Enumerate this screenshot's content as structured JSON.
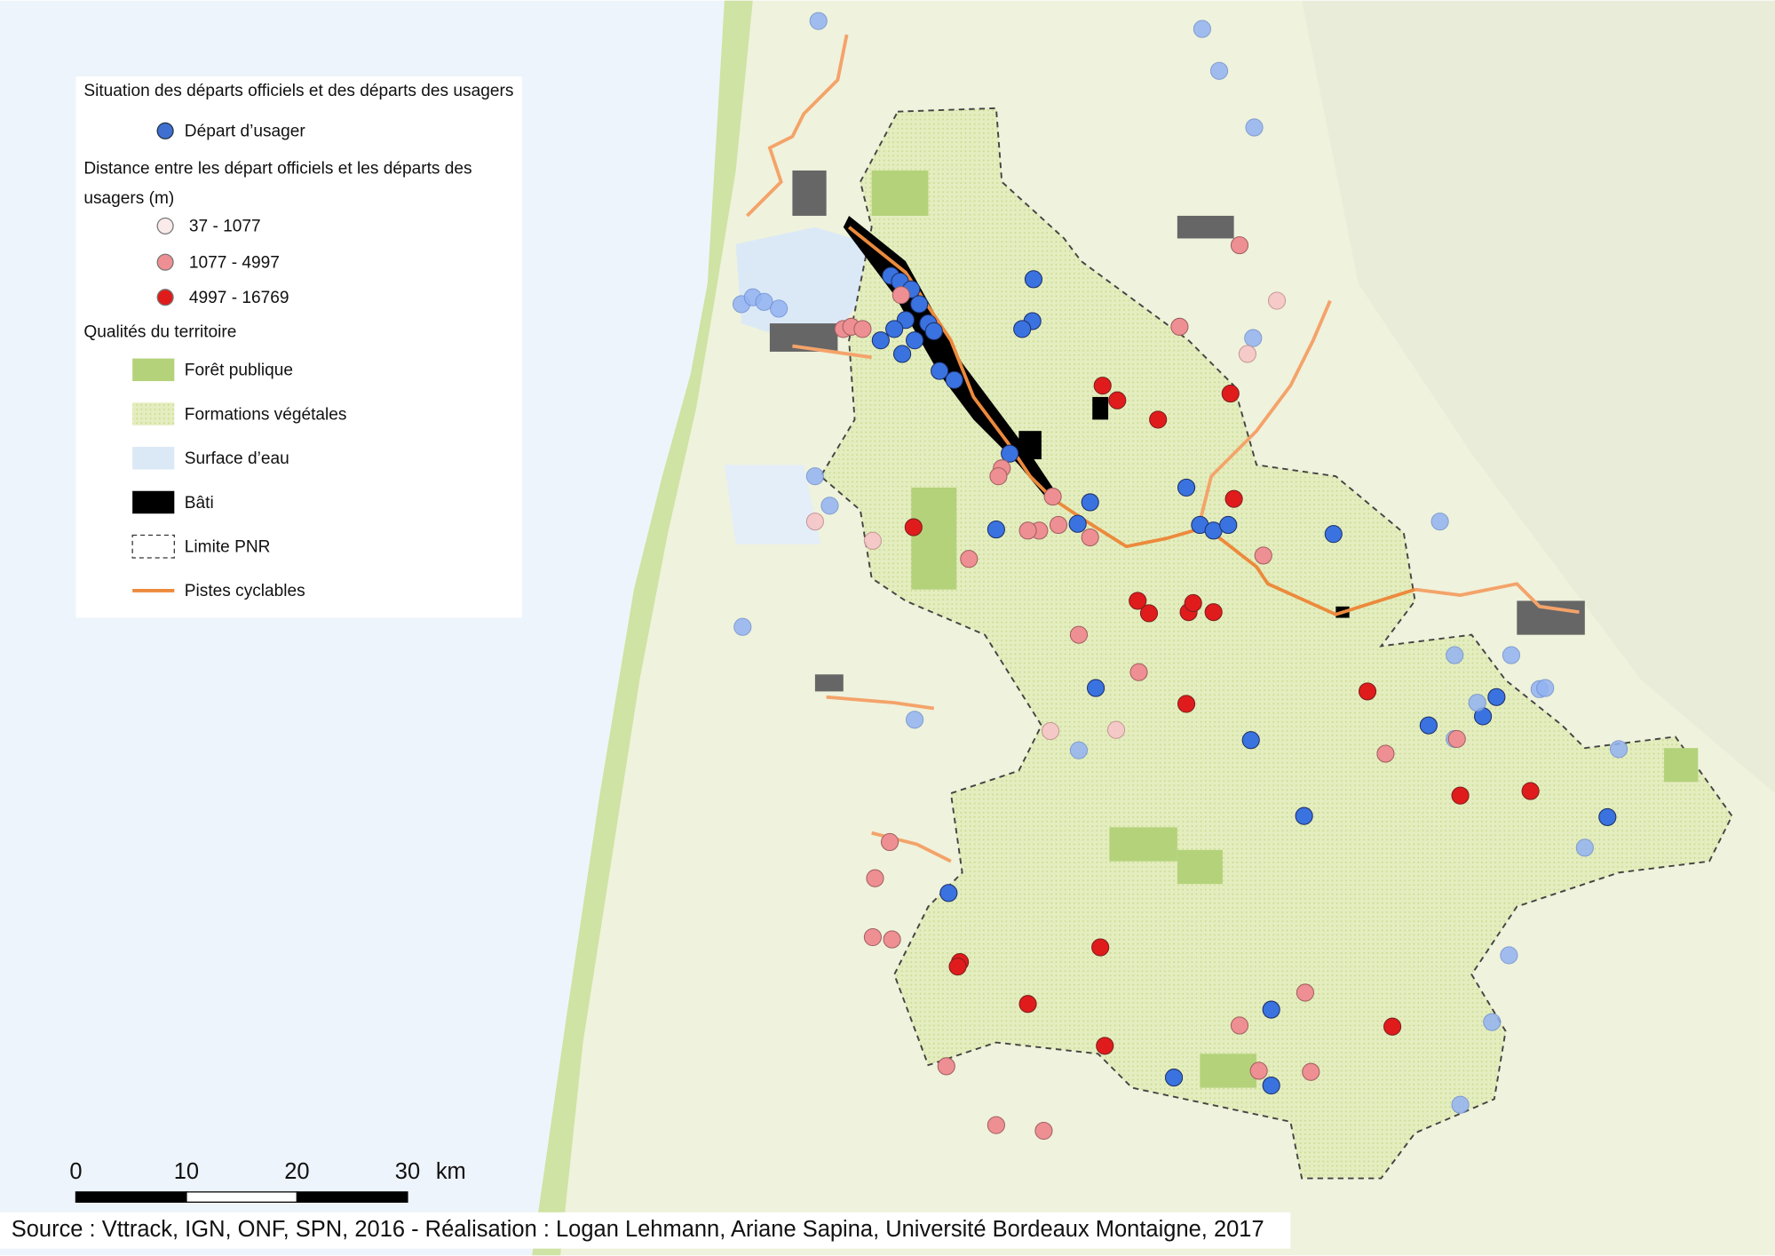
{
  "legend": {
    "title1": "Situation des départs officiels et des départs des usagers",
    "item_user": "Départ d’usager",
    "title2_line1": "Distance entre les départ officiels et les départs des",
    "title2_line2": "usagers (m)",
    "class1": "37 - 1077",
    "class2": "1077 - 4997",
    "class3": "4997 - 16769",
    "title3": "Qualités du territoire",
    "forest": "Forêt publique",
    "vegetation": "Formations végétales",
    "water": "Surface d’eau",
    "buildings": "Bâti",
    "boundary": "Limite PNR",
    "cycle": "Pistes cyclables"
  },
  "scale_bar": {
    "ticks": [
      0,
      10,
      20,
      30
    ],
    "unit": "km"
  },
  "source": "Source : Vttrack, IGN, ONF, SPN, 2016 -  Réalisation : Logan Lehmann, Ariane Sapina, Université Bordeaux Montaigne, 2017"
}
